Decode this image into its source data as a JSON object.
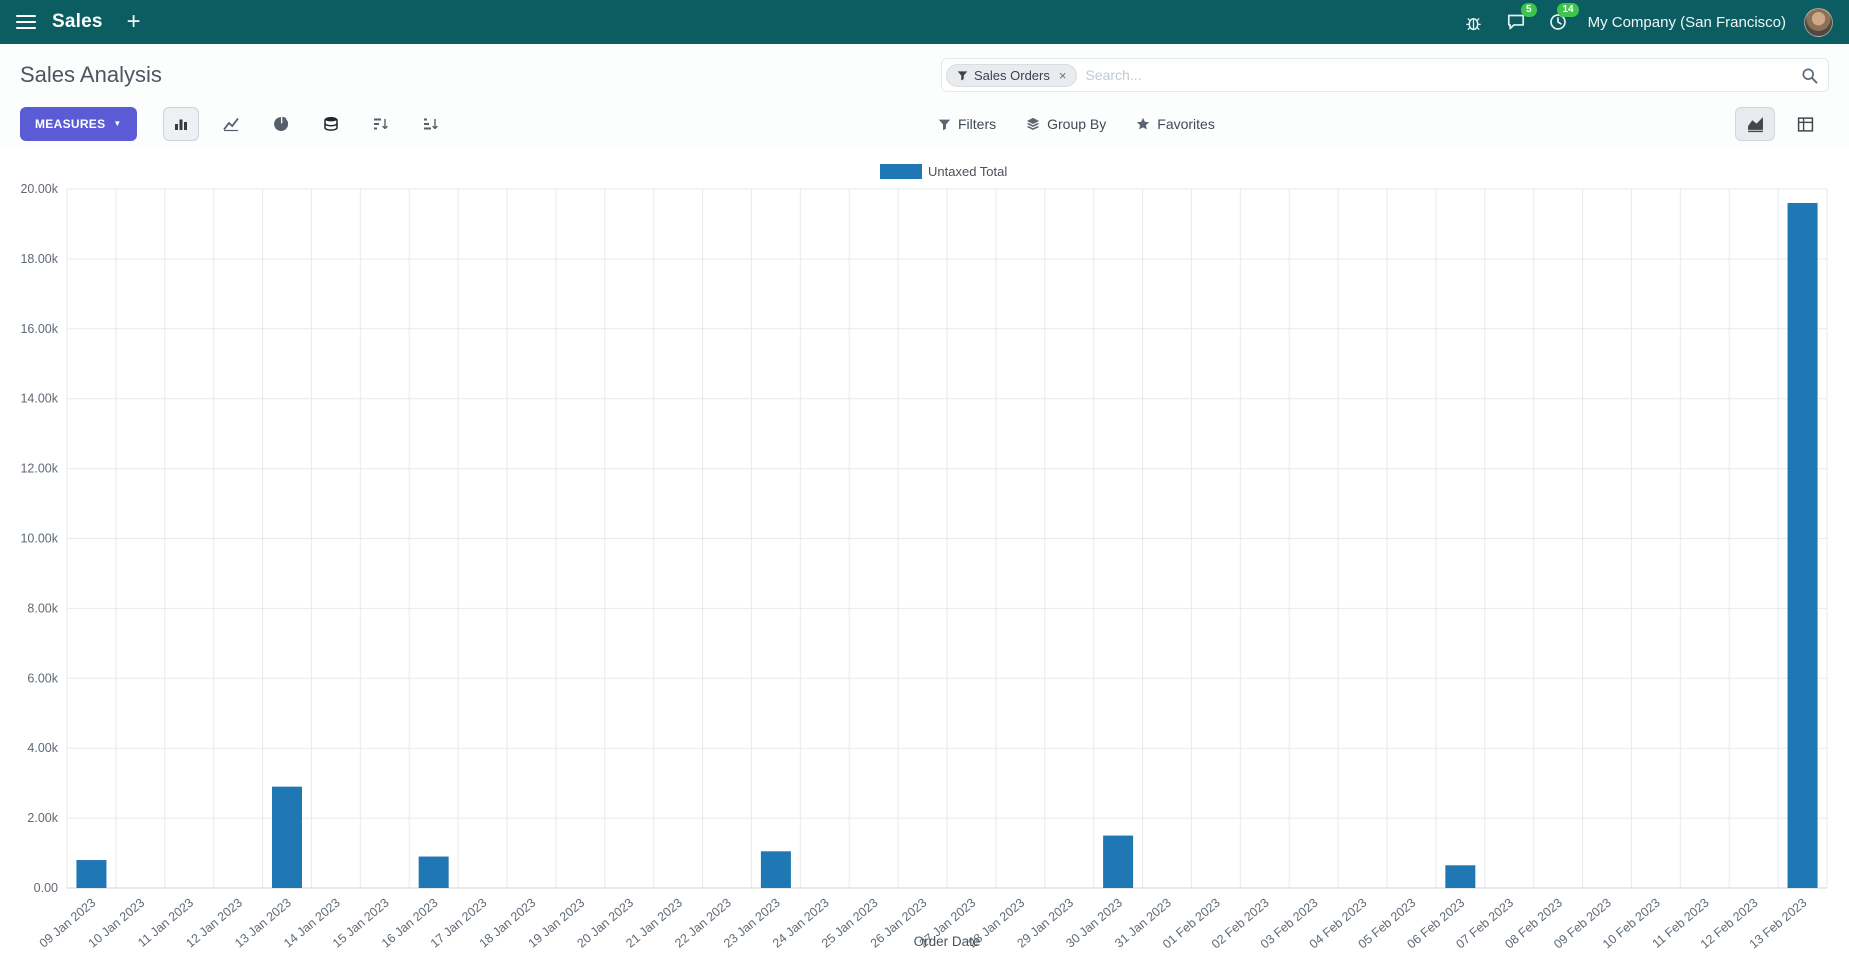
{
  "colors": {
    "navbar_bg": "#0b5d61",
    "primary": "#5b5bd6",
    "badge": "#3fc34f"
  },
  "navbar": {
    "app_name": "Sales",
    "company": "My Company (San Francisco)",
    "message_badge": "5",
    "activity_badge": "14"
  },
  "control_panel": {
    "title": "Sales Analysis",
    "search": {
      "facet_label": "Sales Orders",
      "placeholder": "Search..."
    },
    "measures_label": "MEASURES",
    "filters_label": "Filters",
    "group_by_label": "Group By",
    "favorites_label": "Favorites"
  },
  "icons": {
    "caret_down": "▼",
    "close": "×",
    "plus": "+"
  },
  "chart_data": {
    "type": "bar",
    "title": "",
    "legend": [
      "Untaxed Total"
    ],
    "xlabel": "Order Date",
    "ylabel": "",
    "ylim": [
      0,
      20000
    ],
    "grid": true,
    "legend_position": "top-center",
    "bar_color": "#1f77b4",
    "ytick_labels": [
      "0.00",
      "2.00k",
      "4.00k",
      "6.00k",
      "8.00k",
      "10.00k",
      "12.00k",
      "14.00k",
      "16.00k",
      "18.00k",
      "20.00k"
    ],
    "categories": [
      "09 Jan 2023",
      "10 Jan 2023",
      "11 Jan 2023",
      "12 Jan 2023",
      "13 Jan 2023",
      "14 Jan 2023",
      "15 Jan 2023",
      "16 Jan 2023",
      "17 Jan 2023",
      "18 Jan 2023",
      "19 Jan 2023",
      "20 Jan 2023",
      "21 Jan 2023",
      "22 Jan 2023",
      "23 Jan 2023",
      "24 Jan 2023",
      "25 Jan 2023",
      "26 Jan 2023",
      "27 Jan 2023",
      "28 Jan 2023",
      "29 Jan 2023",
      "30 Jan 2023",
      "31 Jan 2023",
      "01 Feb 2023",
      "02 Feb 2023",
      "03 Feb 2023",
      "04 Feb 2023",
      "05 Feb 2023",
      "06 Feb 2023",
      "07 Feb 2023",
      "08 Feb 2023",
      "09 Feb 2023",
      "10 Feb 2023",
      "11 Feb 2023",
      "12 Feb 2023",
      "13 Feb 2023"
    ],
    "values": [
      800,
      0,
      0,
      0,
      2900,
      0,
      0,
      900,
      0,
      0,
      0,
      0,
      0,
      0,
      1050,
      0,
      0,
      0,
      0,
      0,
      0,
      1500,
      0,
      0,
      0,
      0,
      0,
      0,
      650,
      0,
      0,
      0,
      0,
      0,
      0,
      19600
    ]
  }
}
